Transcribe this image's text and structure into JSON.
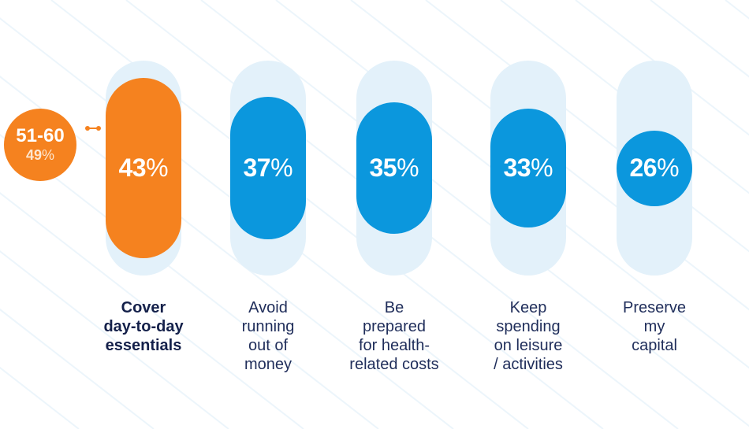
{
  "colors": {
    "highlight": "#f5821f",
    "series": "#0b97dd",
    "track": "#e3f1fa",
    "stripes": "#ecf5fb",
    "label": "#1f2d5a"
  },
  "badge": {
    "age_group": "51-60",
    "value": "49",
    "unit": "%"
  },
  "chart_data": {
    "type": "bar",
    "unit": "%",
    "ylim": [
      0,
      100
    ],
    "highlight_index": 0,
    "categories": [
      [
        "Cover",
        "day-to-day",
        "essentials"
      ],
      [
        "Avoid",
        "running",
        "out of",
        "money"
      ],
      [
        "Be",
        "prepared",
        "for health-",
        "related costs"
      ],
      [
        "Keep",
        "spending",
        "on leisure",
        "/ activities"
      ],
      [
        "Preserve",
        "my",
        "capital"
      ]
    ],
    "values": [
      43,
      37,
      35,
      33,
      26
    ]
  }
}
